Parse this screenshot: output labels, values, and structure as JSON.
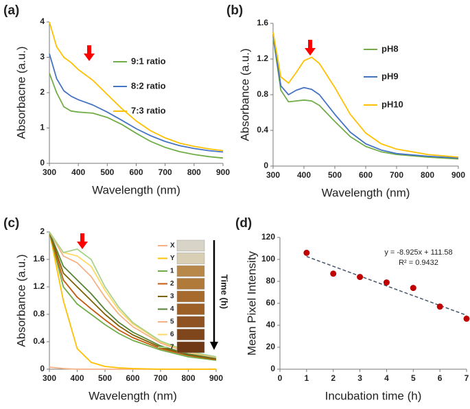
{
  "chart_data": [
    {
      "type": "line",
      "title": "(a)",
      "x_label": "Wavelength (nm)",
      "y_label": "Absorbacne (a.u.)",
      "x": [
        300,
        325,
        350,
        375,
        400,
        450,
        500,
        550,
        600,
        650,
        700,
        750,
        800,
        850,
        900
      ],
      "series": [
        {
          "name": "9:1 ratio",
          "color": "#70ad47",
          "values": [
            2.55,
            2.0,
            1.6,
            1.48,
            1.45,
            1.42,
            1.3,
            1.1,
            0.85,
            0.62,
            0.45,
            0.33,
            0.25,
            0.19,
            0.15
          ]
        },
        {
          "name": "8:2 ratio",
          "color": "#4472c4",
          "values": [
            3.1,
            2.4,
            2.05,
            1.9,
            1.8,
            1.65,
            1.45,
            1.22,
            0.98,
            0.78,
            0.62,
            0.5,
            0.42,
            0.36,
            0.32
          ]
        },
        {
          "name": "7:3 ratio",
          "color": "#ffc000",
          "values": [
            4.0,
            3.3,
            3.0,
            2.85,
            2.65,
            2.35,
            1.95,
            1.55,
            1.2,
            0.92,
            0.72,
            0.57,
            0.48,
            0.41,
            0.36
          ]
        }
      ],
      "xlim": [
        300,
        900
      ],
      "xticks": [
        300,
        400,
        500,
        600,
        700,
        800,
        900
      ],
      "ylim": [
        0,
        4
      ],
      "yticks": [
        0,
        1,
        2,
        3,
        4
      ],
      "grid": false
    },
    {
      "type": "line",
      "title": "(b)",
      "x_label": "Wavelength (nm)",
      "y_label": "Absorbance (a.u.)",
      "x": [
        300,
        325,
        350,
        375,
        400,
        425,
        450,
        500,
        550,
        600,
        650,
        700,
        800,
        900
      ],
      "series": [
        {
          "name": "pH8",
          "color": "#70ad47",
          "values": [
            1.45,
            0.85,
            0.72,
            0.73,
            0.74,
            0.73,
            0.68,
            0.5,
            0.33,
            0.22,
            0.16,
            0.13,
            0.1,
            0.08
          ]
        },
        {
          "name": "pH9",
          "color": "#4472c4",
          "values": [
            1.48,
            0.9,
            0.8,
            0.85,
            0.88,
            0.86,
            0.8,
            0.58,
            0.38,
            0.25,
            0.18,
            0.14,
            0.11,
            0.09
          ]
        },
        {
          "name": "pH10",
          "color": "#ffc000",
          "values": [
            1.5,
            1.0,
            0.93,
            1.05,
            1.18,
            1.22,
            1.15,
            0.88,
            0.58,
            0.37,
            0.25,
            0.19,
            0.13,
            0.1
          ]
        }
      ],
      "xlim": [
        300,
        900
      ],
      "xticks": [
        300,
        400,
        500,
        600,
        700,
        800,
        900
      ],
      "ylim": [
        0,
        1.6
      ],
      "yticks": [
        0,
        0.4,
        0.8,
        1.2,
        1.6
      ],
      "grid": false
    },
    {
      "type": "line",
      "title": "(c)",
      "x_label": "Wavelength (nm)",
      "y_label": "Absorbance (a.u.)",
      "annotation": "Time (h)",
      "x": [
        300,
        350,
        400,
        450,
        500,
        550,
        600,
        700,
        800,
        900
      ],
      "series": [
        {
          "name": "X",
          "color": "#f4b183",
          "values": [
            0.03,
            0.01,
            0,
            0,
            0,
            0,
            0,
            0,
            0,
            0
          ]
        },
        {
          "name": "Y",
          "color": "#ffc000",
          "values": [
            2.0,
            1.0,
            0.3,
            0.1,
            0.04,
            0.02,
            0.01,
            0,
            0,
            0
          ]
        },
        {
          "name": "1",
          "color": "#70ad47",
          "values": [
            2.0,
            1.2,
            0.95,
            0.8,
            0.65,
            0.52,
            0.42,
            0.28,
            0.18,
            0.13
          ]
        },
        {
          "name": "2",
          "color": "#c55a11",
          "values": [
            2.0,
            1.3,
            1.05,
            0.88,
            0.72,
            0.57,
            0.46,
            0.3,
            0.2,
            0.14
          ]
        },
        {
          "name": "3",
          "color": "#7f6000",
          "values": [
            2.0,
            1.4,
            1.2,
            1.0,
            0.8,
            0.63,
            0.5,
            0.32,
            0.21,
            0.15
          ]
        },
        {
          "name": "4",
          "color": "#548235",
          "values": [
            2.0,
            1.5,
            1.3,
            1.1,
            0.87,
            0.68,
            0.54,
            0.34,
            0.22,
            0.16
          ]
        },
        {
          "name": "5",
          "color": "#f4b183",
          "values": [
            2.0,
            1.65,
            1.55,
            1.35,
            1.05,
            0.8,
            0.62,
            0.38,
            0.24,
            0.17
          ]
        },
        {
          "name": "6",
          "color": "#ffd966",
          "values": [
            2.0,
            1.7,
            1.65,
            1.5,
            1.15,
            0.86,
            0.66,
            0.4,
            0.25,
            0.18
          ]
        },
        {
          "name": "7",
          "color": "#a9d18e",
          "values": [
            2.0,
            1.7,
            1.75,
            1.6,
            1.2,
            0.9,
            0.68,
            0.41,
            0.26,
            0.18
          ]
        }
      ],
      "xlim": [
        300,
        900
      ],
      "xticks": [
        300,
        400,
        500,
        600,
        700,
        800,
        900
      ],
      "ylim": [
        0,
        2
      ],
      "yticks": [
        0,
        0.4,
        0.8,
        1.2,
        1.6,
        2
      ],
      "grid": false
    },
    {
      "type": "scatter",
      "title": "(d)",
      "x_label": "Incubation time (h)",
      "y_label": "Mean Pixel Intensity",
      "x": [
        1,
        2,
        3,
        4,
        5,
        6,
        7
      ],
      "values": [
        106,
        87,
        84,
        79,
        74,
        57,
        46
      ],
      "color": "#c00000",
      "trendline": {
        "slope": -8.925,
        "intercept": 111.58,
        "label": "y = -8.925x + 111.58",
        "r2_label": "R² = 0.9432",
        "color": "#44546a"
      },
      "xlim": [
        0,
        7
      ],
      "xticks": [
        0,
        1,
        2,
        3,
        4,
        5,
        6,
        7
      ],
      "ylim": [
        0,
        120
      ],
      "yticks": [
        0,
        20,
        40,
        60,
        80,
        100,
        120
      ],
      "grid": false
    }
  ]
}
